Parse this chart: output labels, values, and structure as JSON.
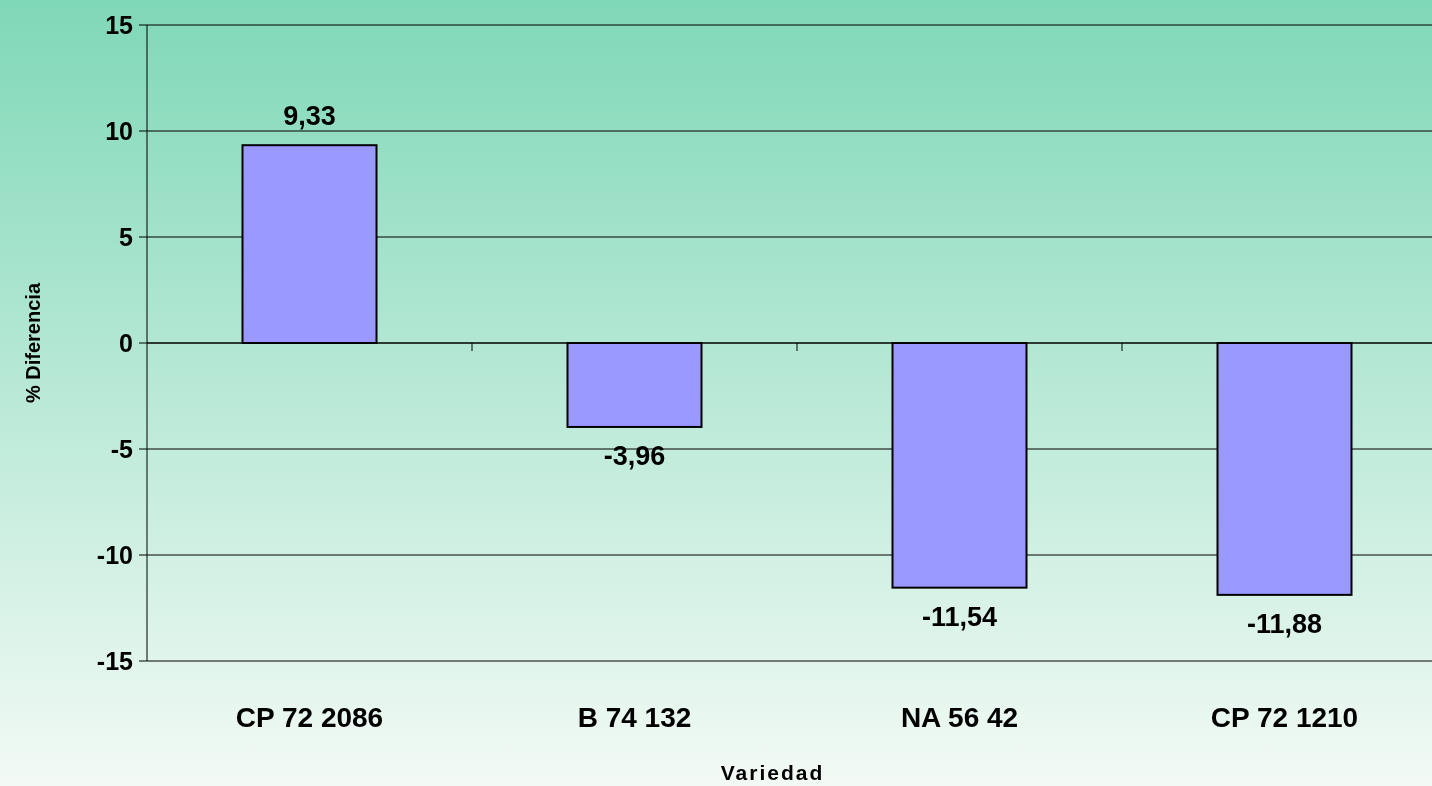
{
  "chart_data": {
    "type": "bar",
    "xlabel": "Variedad",
    "ylabel": "% Diferencia",
    "categories": [
      "CP 72 2086",
      "B 74 132",
      "NA 56 42",
      "CP 72 1210"
    ],
    "values": [
      9.33,
      -3.96,
      -11.54,
      -11.88
    ],
    "value_labels": [
      "9,33",
      "-3,96",
      "-11,54",
      "-11,88"
    ],
    "color": "#9999ff",
    "ylim": [
      -15,
      15
    ],
    "yticks": [
      -15,
      -10,
      -5,
      0,
      5,
      10,
      15
    ],
    "grid": "y"
  }
}
